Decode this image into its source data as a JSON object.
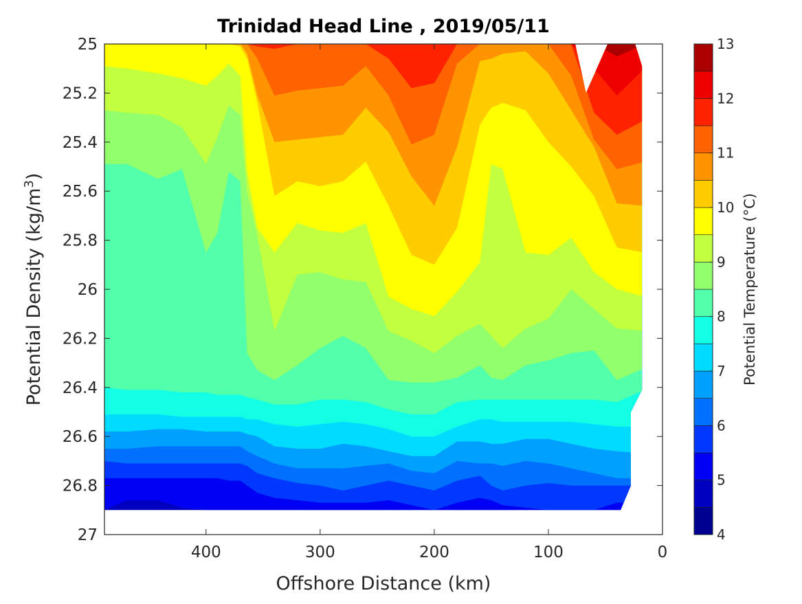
{
  "chart_data": {
    "type": "contour",
    "title": "Trinidad Head Line , 2019/05/11",
    "xlabel": "Offshore Distance (km)",
    "ylabel": "Potential Density (kg/m³)",
    "xlim": [
      489,
      0
    ],
    "ylim": [
      25,
      27
    ],
    "x_reversed": true,
    "y_reversed": true,
    "xticks": [
      {
        "value": 400,
        "label": "400"
      },
      {
        "value": 300,
        "label": "300"
      },
      {
        "value": 200,
        "label": "200"
      },
      {
        "value": 100,
        "label": "100"
      },
      {
        "value": 0,
        "label": "0"
      }
    ],
    "yticks": [
      {
        "value": 25,
        "label": "25"
      },
      {
        "value": 25.2,
        "label": "25.2"
      },
      {
        "value": 25.4,
        "label": "25.4"
      },
      {
        "value": 25.6,
        "label": "25.6"
      },
      {
        "value": 25.8,
        "label": "25.8"
      },
      {
        "value": 26,
        "label": "26"
      },
      {
        "value": 26.2,
        "label": "26.2"
      },
      {
        "value": 26.4,
        "label": "26.4"
      },
      {
        "value": 26.6,
        "label": "26.6"
      },
      {
        "value": 26.8,
        "label": "26.8"
      },
      {
        "value": 27,
        "label": "27"
      }
    ],
    "colorbar": {
      "label": "Potential Temperature (°C)",
      "range": [
        4,
        13
      ],
      "step": 0.5,
      "ticks": [
        {
          "value": 4,
          "label": "4"
        },
        {
          "value": 5,
          "label": "5"
        },
        {
          "value": 6,
          "label": "6"
        },
        {
          "value": 7,
          "label": "7"
        },
        {
          "value": 8,
          "label": "8"
        },
        {
          "value": 9,
          "label": "9"
        },
        {
          "value": 10,
          "label": "10"
        },
        {
          "value": 11,
          "label": "11"
        },
        {
          "value": 12,
          "label": "12"
        },
        {
          "value": 13,
          "label": "13"
        }
      ],
      "band_colors": [
        "#000090",
        "#0000C0",
        "#0000F5",
        "#0038FF",
        "#0070FF",
        "#00A0FF",
        "#00DCFF",
        "#12FFE6",
        "#52FFAA",
        "#92FF6C",
        "#C2FF3E",
        "#FFFF00",
        "#FFCC00",
        "#FF9400",
        "#FF6200",
        "#FF2200",
        "#EE0000",
        "#AA0000"
      ]
    },
    "x_km": [
      489,
      469,
      442,
      421,
      400,
      390,
      380,
      370,
      364,
      355,
      340,
      320,
      300,
      280,
      260,
      240,
      220,
      200,
      180,
      160,
      150,
      140,
      120,
      100,
      80,
      60,
      40,
      18
    ],
    "data_extent": [
      [
        489,
        25
      ],
      [
        76.5,
        25
      ],
      [
        67,
        25.2
      ],
      [
        48,
        25
      ],
      [
        24,
        25
      ],
      [
        18,
        25.09
      ],
      [
        18,
        26.41
      ],
      [
        27.7,
        26.5
      ],
      [
        27.7,
        26.8
      ],
      [
        36.7,
        26.9
      ],
      [
        489,
        26.9
      ]
    ],
    "contours": [
      {
        "level": 5,
        "density": [
          26.9,
          26.86,
          26.86,
          26.89,
          26.9,
          26.9,
          26.9,
          26.9,
          26.9,
          26.9,
          26.9,
          26.9,
          26.9,
          26.9,
          26.9,
          26.9,
          26.9,
          26.9,
          26.9,
          26.9,
          26.9,
          26.9,
          26.9,
          26.9,
          26.9,
          26.9,
          26.9,
          26.9
        ]
      },
      {
        "level": 5.5,
        "density": [
          26.77,
          26.77,
          26.77,
          26.77,
          26.77,
          26.77,
          26.78,
          26.78,
          26.8,
          26.83,
          26.85,
          26.86,
          26.87,
          26.87,
          26.87,
          26.86,
          26.88,
          26.9,
          26.87,
          26.85,
          26.86,
          26.88,
          26.89,
          26.9,
          26.9,
          26.9,
          26.87,
          26.87
        ]
      },
      {
        "level": 6,
        "density": [
          26.7,
          26.71,
          26.71,
          26.71,
          26.71,
          26.71,
          26.71,
          26.71,
          26.72,
          26.75,
          26.77,
          26.79,
          26.8,
          26.82,
          26.8,
          26.78,
          26.8,
          26.82,
          26.78,
          26.76,
          26.8,
          26.82,
          26.8,
          26.79,
          26.8,
          26.8,
          26.8,
          26.8
        ]
      },
      {
        "level": 6.5,
        "density": [
          26.65,
          26.65,
          26.64,
          26.64,
          26.64,
          26.64,
          26.64,
          26.64,
          26.66,
          26.68,
          26.71,
          26.73,
          26.73,
          26.73,
          26.72,
          26.71,
          26.74,
          26.75,
          26.7,
          26.71,
          26.71,
          26.72,
          26.7,
          26.71,
          26.73,
          26.75,
          26.77,
          26.77
        ]
      },
      {
        "level": 7,
        "density": [
          26.58,
          26.58,
          26.57,
          26.57,
          26.58,
          26.58,
          26.58,
          26.58,
          26.59,
          26.6,
          26.64,
          26.65,
          26.65,
          26.63,
          26.64,
          26.66,
          26.68,
          26.68,
          26.62,
          26.62,
          26.63,
          26.63,
          26.61,
          26.61,
          26.63,
          26.65,
          26.66,
          26.67
        ]
      },
      {
        "level": 7.5,
        "density": [
          26.51,
          26.51,
          26.51,
          26.52,
          26.52,
          26.52,
          26.52,
          26.52,
          26.53,
          26.53,
          26.55,
          26.56,
          26.55,
          26.54,
          26.55,
          26.57,
          26.6,
          26.6,
          26.56,
          26.53,
          26.53,
          26.54,
          26.54,
          26.54,
          26.54,
          26.55,
          26.56,
          26.56
        ]
      },
      {
        "level": 8,
        "density": [
          26.4,
          26.41,
          26.41,
          26.42,
          26.42,
          26.43,
          26.43,
          26.43,
          26.44,
          26.45,
          26.47,
          26.47,
          26.45,
          26.45,
          26.46,
          26.49,
          26.51,
          26.51,
          26.46,
          26.45,
          26.45,
          26.45,
          26.45,
          26.45,
          26.45,
          26.45,
          26.46,
          26.41
        ]
      },
      {
        "level": 8.5,
        "density": [
          25.49,
          25.49,
          25.55,
          25.51,
          25.85,
          25.77,
          25.52,
          25.56,
          26.26,
          26.33,
          26.37,
          26.31,
          26.24,
          26.19,
          26.24,
          26.37,
          26.38,
          26.38,
          26.36,
          26.31,
          26.36,
          26.37,
          26.31,
          26.29,
          26.26,
          26.25,
          26.37,
          26.32
        ]
      },
      {
        "level": 9,
        "density": [
          25.27,
          25.28,
          25.29,
          25.34,
          25.49,
          25.38,
          25.25,
          25.29,
          25.6,
          25.78,
          26.17,
          25.94,
          25.93,
          25.96,
          25.97,
          26.17,
          26.21,
          26.26,
          26.19,
          26.14,
          26.19,
          26.24,
          26.16,
          26.12,
          26.0,
          26.08,
          26.16,
          26.17
        ]
      },
      {
        "level": 9.5,
        "density": [
          25.09,
          25.1,
          25.12,
          25.14,
          25.17,
          25.13,
          25.08,
          25.13,
          25.52,
          25.75,
          25.85,
          25.73,
          25.76,
          25.77,
          25.73,
          26.03,
          26.08,
          26.11,
          26.01,
          25.89,
          25.49,
          25.51,
          25.85,
          25.86,
          25.79,
          25.93,
          26.0,
          26.03
        ]
      },
      {
        "level": 10,
        "density": [
          25.0,
          25.0,
          25.0,
          25.0,
          25.0,
          25.0,
          25.0,
          25.01,
          25.06,
          25.24,
          25.62,
          25.56,
          25.58,
          25.56,
          25.48,
          25.66,
          25.86,
          25.9,
          25.75,
          25.33,
          25.26,
          25.24,
          25.27,
          25.4,
          25.5,
          25.62,
          25.83,
          25.85
        ]
      },
      {
        "level": 10.5,
        "density": [
          25.0,
          25.0,
          25.0,
          25.0,
          25.0,
          25.0,
          25.0,
          25.0,
          25.04,
          25.21,
          25.4,
          25.39,
          25.38,
          25.37,
          25.26,
          25.36,
          25.54,
          25.66,
          25.42,
          25.07,
          25.06,
          25.04,
          25.03,
          25.12,
          25.27,
          25.42,
          25.65,
          25.66
        ]
      },
      {
        "level": 11,
        "density": [
          25.0,
          25.0,
          25.0,
          25.0,
          25.0,
          25.0,
          25.0,
          25.0,
          25.0,
          25.06,
          25.21,
          25.19,
          25.18,
          25.17,
          25.09,
          25.21,
          25.41,
          25.37,
          25.08,
          25.0,
          25.0,
          25.0,
          25.0,
          25.0,
          25.13,
          25.39,
          25.51,
          25.48
        ]
      },
      {
        "level": 11.5,
        "density": [
          25.0,
          25.0,
          25.0,
          25.0,
          25.0,
          25.0,
          25.0,
          25.0,
          25.0,
          25.01,
          25.02,
          25.0,
          25.0,
          25.0,
          25.0,
          25.06,
          25.18,
          25.16,
          25.0,
          25.0,
          25.0,
          25.0,
          25.0,
          25.0,
          25.0,
          25.28,
          25.37,
          25.31
        ]
      },
      {
        "level": 12,
        "density": [
          25.0,
          25.0,
          25.0,
          25.0,
          25.0,
          25.0,
          25.0,
          25.0,
          25.0,
          25.0,
          25.0,
          25.0,
          25.0,
          25.0,
          25.0,
          25.0,
          25.0,
          25.0,
          25.0,
          25.0,
          25.0,
          25.0,
          25.0,
          25.0,
          25.0,
          25.1,
          25.21,
          25.1
        ]
      },
      {
        "level": 12.5,
        "density": [
          25.0,
          25.0,
          25.0,
          25.0,
          25.0,
          25.0,
          25.0,
          25.0,
          25.0,
          25.0,
          25.0,
          25.0,
          25.0,
          25.0,
          25.0,
          25.0,
          25.0,
          25.0,
          25.0,
          25.0,
          25.0,
          25.0,
          25.0,
          25.0,
          25.0,
          25.0,
          25.05,
          25.0
        ]
      }
    ]
  }
}
